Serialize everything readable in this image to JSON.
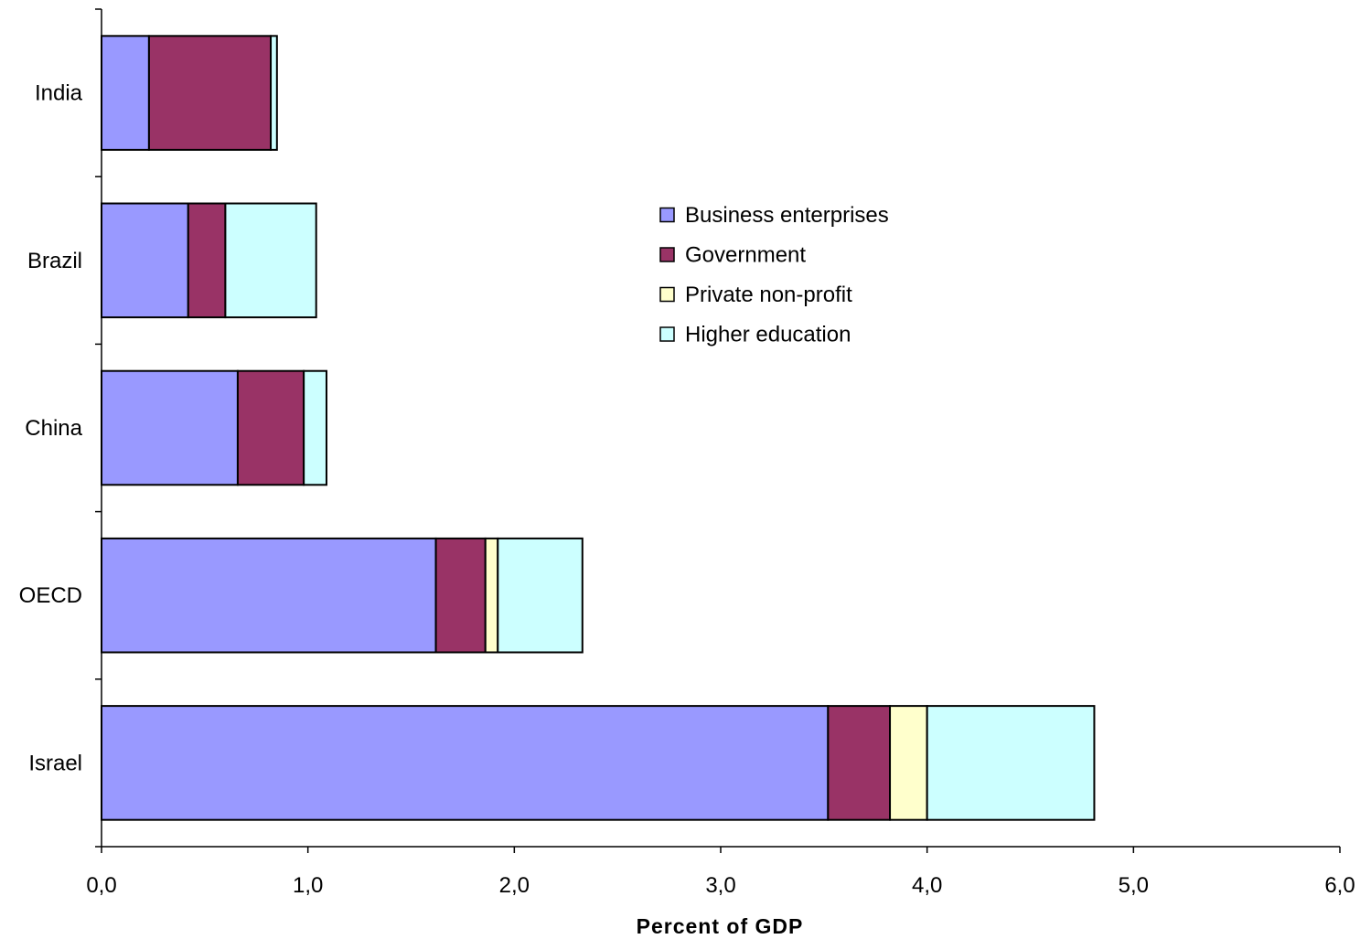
{
  "chart_data": {
    "type": "bar",
    "orientation": "horizontal",
    "stacked": true,
    "title": "",
    "xlabel": "Percent of GDP",
    "ylabel": "",
    "categories": [
      "India",
      "Brazil",
      "China",
      "OECD",
      "Israel"
    ],
    "xlim": [
      0,
      6
    ],
    "x_ticks": [
      "0,0",
      "1,0",
      "2,0",
      "3,0",
      "4,0",
      "5,0",
      "6,0"
    ],
    "grid": false,
    "legend_position": "upper-right-inside",
    "series": [
      {
        "name": "Business enterprises",
        "color": "#9999ff",
        "values": [
          0.23,
          0.42,
          0.66,
          1.62,
          3.52
        ]
      },
      {
        "name": "Government",
        "color": "#993366",
        "values": [
          0.59,
          0.18,
          0.32,
          0.24,
          0.3
        ]
      },
      {
        "name": "Private non-profit",
        "color": "#ffffcc",
        "values": [
          0.0,
          0.0,
          0.0,
          0.06,
          0.18
        ]
      },
      {
        "name": "Higher education",
        "color": "#ccffff",
        "values": [
          0.03,
          0.44,
          0.11,
          0.41,
          0.81
        ]
      }
    ]
  }
}
